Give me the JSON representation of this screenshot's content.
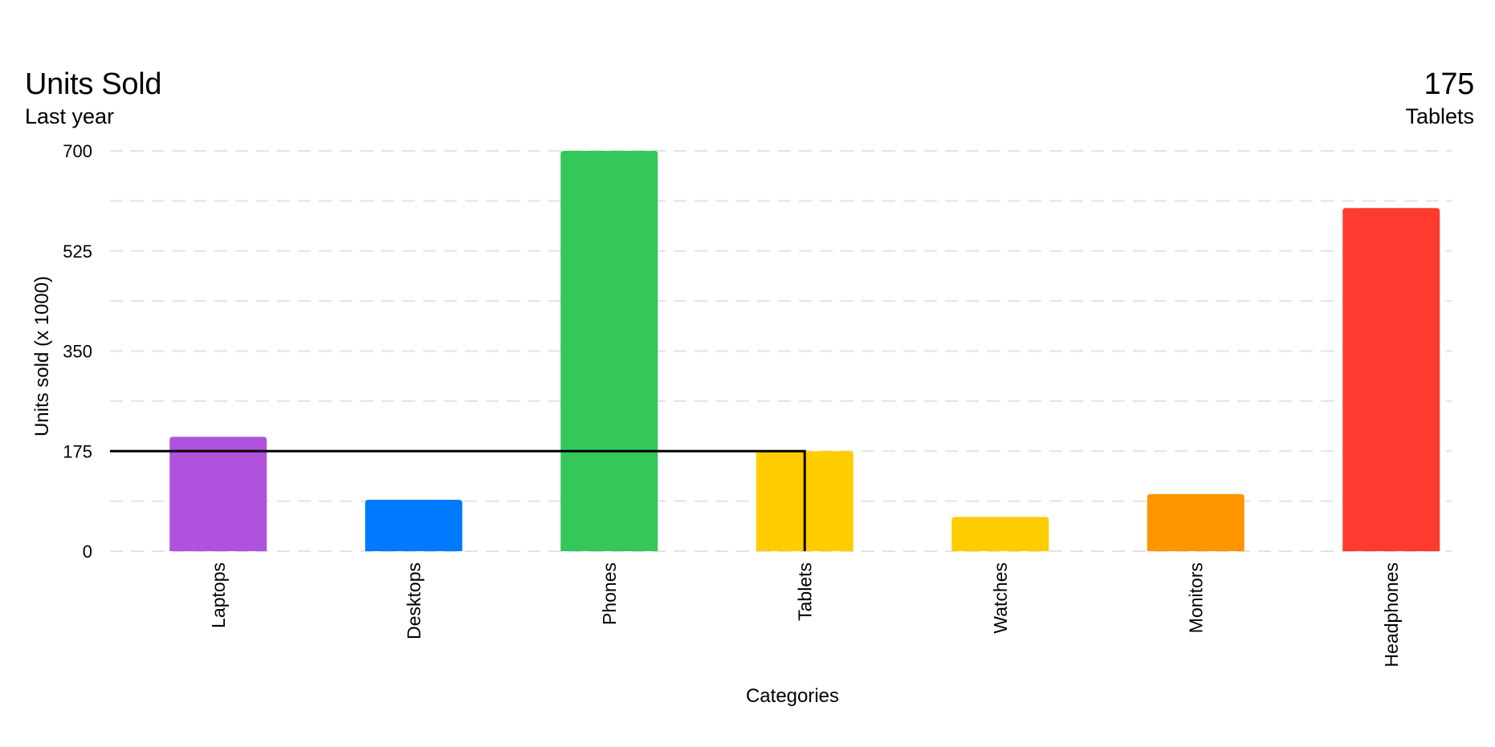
{
  "header": {
    "title": "Units Sold",
    "subtitle": "Last year",
    "selected_value": "175",
    "selected_category": "Tablets"
  },
  "chart_data": {
    "type": "bar",
    "title": "Units Sold",
    "subtitle": "Last year",
    "xlabel": "Categories",
    "ylabel": "Units sold (x 1000)",
    "categories": [
      "Laptops",
      "Desktops",
      "Phones",
      "Tablets",
      "Watches",
      "Monitors",
      "Headphones"
    ],
    "values": [
      200,
      90,
      700,
      175,
      60,
      100,
      600
    ],
    "colors": [
      "#AF52DE",
      "#007AFF",
      "#34C759",
      "#FFCC00",
      "#FFCC00",
      "#FF9500",
      "#FF3B30"
    ],
    "ylim": [
      0,
      700
    ],
    "yticks": [
      0,
      175,
      350,
      525,
      700
    ],
    "ytick_labels": [
      "0",
      "175",
      "350",
      "525",
      "700"
    ],
    "grid": true,
    "grid_style": "dashed",
    "highlight": {
      "category": "Tablets",
      "value": 175,
      "rule_color": "#000000"
    }
  }
}
